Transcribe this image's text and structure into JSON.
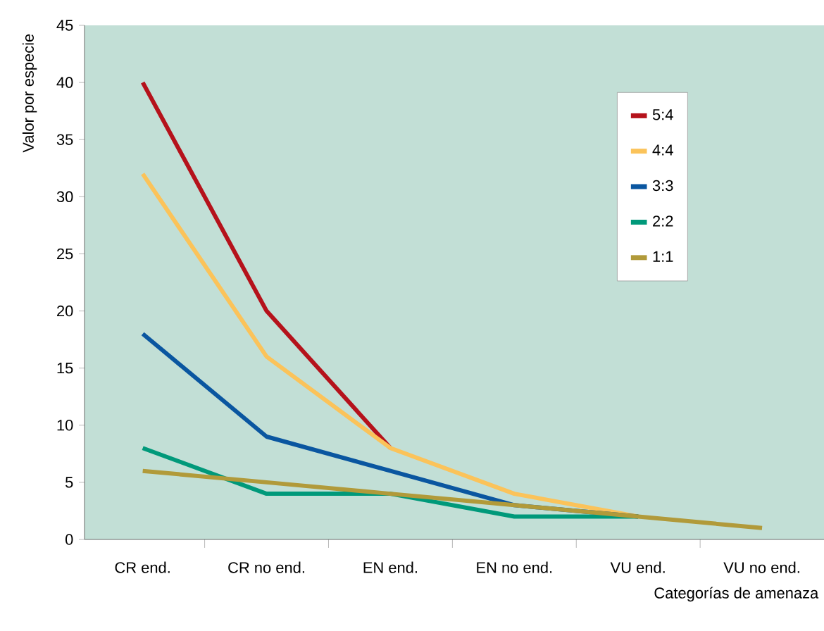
{
  "chart_data": {
    "type": "line",
    "xlabel": "Categorías de amenaza",
    "ylabel": "Valor por especie",
    "categories": [
      "CR end.",
      "CR no end.",
      "EN end.",
      "EN no end.",
      "VU end.",
      "VU no end."
    ],
    "ylim": [
      0,
      45
    ],
    "yticks": [
      0,
      5,
      10,
      15,
      20,
      25,
      30,
      35,
      40,
      45
    ],
    "grid": false,
    "legend": "top right",
    "marker": "none",
    "line_style": "solid",
    "series": [
      {
        "name": "5:4",
        "color": "#b5121b",
        "values": [
          40,
          20,
          8,
          null,
          null,
          null
        ]
      },
      {
        "name": "4:4",
        "color": "#fbc35a",
        "values": [
          32,
          16,
          8,
          4,
          2,
          null
        ]
      },
      {
        "name": "3:3",
        "color": "#0a56a0",
        "values": [
          18,
          9,
          6,
          3,
          2,
          null
        ]
      },
      {
        "name": "2:2",
        "color": "#00997a",
        "values": [
          8,
          4,
          4,
          2,
          2,
          null
        ]
      },
      {
        "name": "1:1",
        "color": "#b19a3a",
        "values": [
          6,
          5,
          4,
          3,
          2,
          1
        ]
      }
    ]
  }
}
